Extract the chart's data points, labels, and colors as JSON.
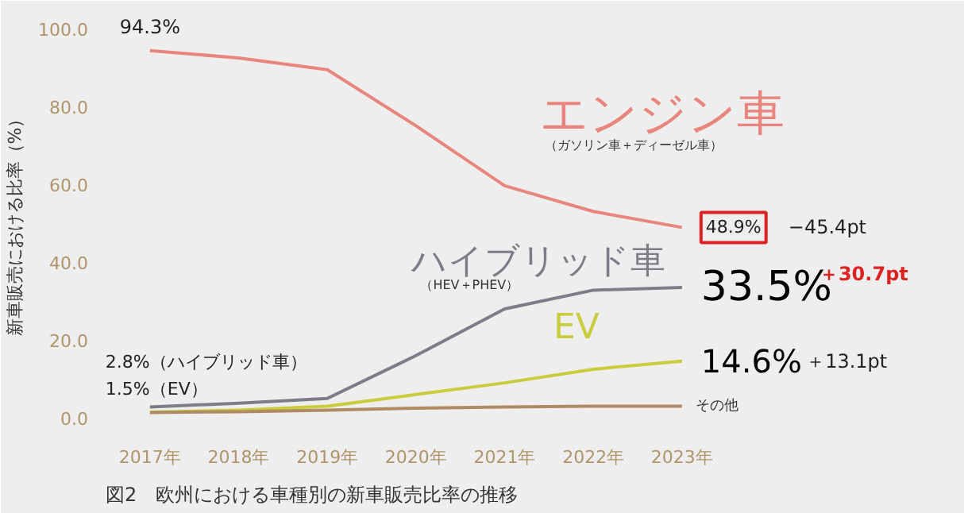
{
  "chart_data": {
    "type": "line",
    "title": "図2　欧州における車種別の新車販売比率の推移",
    "ylabel": "新車販売における比率（%）",
    "categories": [
      "2017年",
      "2018年",
      "2019年",
      "2020年",
      "2021年",
      "2022年",
      "2023年"
    ],
    "series": [
      {
        "name": "エンジン車",
        "color": "#e8857c",
        "values": [
          94.3,
          92.4,
          89.4,
          75,
          59.6,
          53,
          48.9
        ]
      },
      {
        "name": "ハイブリッド車",
        "color": "#7d7d88",
        "values": [
          2.8,
          3.8,
          5,
          16,
          28,
          32.8,
          33.5
        ]
      },
      {
        "name": "EV",
        "color": "#c9cc3c",
        "values": [
          1.5,
          2,
          3,
          6,
          9,
          12.5,
          14.6
        ]
      },
      {
        "name": "その他",
        "color": "#b08a62",
        "values": [
          1.4,
          1.6,
          2,
          2.5,
          2.8,
          3,
          3
        ]
      }
    ],
    "ylim": [
      -3,
      103
    ],
    "yticks": [
      {
        "value": 0,
        "label": "0.0"
      },
      {
        "value": 20,
        "label": "20.0"
      },
      {
        "value": 40,
        "label": "40.0"
      },
      {
        "value": 60,
        "label": "60.0"
      },
      {
        "value": 80,
        "label": "80.0"
      },
      {
        "value": 100,
        "label": "100.0"
      }
    ],
    "grid": false,
    "marker": "none",
    "line_style": "solid",
    "annotations": [
      {
        "text": "94.3%",
        "x": "2017年",
        "y": 94.3
      },
      {
        "text": "2.8%（ハイブリッド車）",
        "x": "2017年",
        "y": 2.8
      },
      {
        "text": "1.5%（EV）",
        "x": "2017年",
        "y": 1.5
      },
      {
        "text": "48.9%",
        "x": "2023年",
        "y": 48.9
      },
      {
        "text": "33.5%",
        "x": "2023年",
        "y": 33.5
      },
      {
        "text": "14.6%",
        "x": "2023年",
        "y": 14.6
      },
      "−45.4pt",
      "＋30.7pt",
      "＋13.1pt",
      "（ガソリン車＋ディーゼル車）",
      "（HEV＋PHEV）"
    ]
  }
}
